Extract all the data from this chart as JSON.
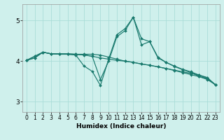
{
  "xlabel": "Humidex (Indice chaleur)",
  "bg_color": "#cff0ec",
  "grid_color": "#aaddd8",
  "line_color": "#1a7a6e",
  "xlim": [
    -0.5,
    23.5
  ],
  "ylim": [
    2.75,
    5.4
  ],
  "yticks": [
    3,
    4,
    5
  ],
  "xticks": [
    0,
    1,
    2,
    3,
    4,
    5,
    6,
    7,
    8,
    9,
    10,
    11,
    12,
    13,
    14,
    15,
    16,
    17,
    18,
    19,
    20,
    21,
    22,
    23
  ],
  "lines": [
    {
      "x": [
        0,
        1,
        2,
        3,
        4,
        5,
        6,
        7,
        8,
        9,
        10,
        11,
        12,
        13,
        14,
        15,
        16,
        17,
        18,
        19,
        20,
        21,
        22,
        23
      ],
      "y": [
        4.02,
        4.12,
        4.22,
        4.18,
        4.18,
        4.18,
        4.17,
        4.17,
        4.17,
        4.15,
        4.1,
        4.05,
        4.0,
        3.97,
        3.93,
        3.9,
        3.86,
        3.82,
        3.78,
        3.74,
        3.7,
        3.66,
        3.6,
        3.42
      ]
    },
    {
      "x": [
        0,
        1,
        2,
        3,
        4,
        5,
        6,
        7,
        8,
        9,
        10,
        11,
        12,
        13,
        14,
        15,
        16,
        17,
        18,
        19,
        20,
        21,
        22,
        23
      ],
      "y": [
        4.02,
        4.08,
        4.22,
        4.18,
        4.17,
        4.17,
        4.16,
        4.16,
        4.12,
        3.55,
        4.0,
        4.6,
        4.75,
        5.08,
        4.55,
        4.48,
        4.1,
        3.97,
        3.88,
        3.8,
        3.74,
        3.66,
        3.58,
        3.42
      ]
    },
    {
      "x": [
        0,
        1,
        2,
        3,
        4,
        5,
        6,
        7,
        8,
        9,
        10,
        11,
        12,
        13,
        14,
        15,
        16,
        17,
        18,
        19,
        20,
        21,
        22,
        23
      ],
      "y": [
        4.02,
        4.08,
        4.22,
        4.18,
        4.17,
        4.17,
        4.15,
        3.88,
        3.75,
        3.4,
        4.05,
        4.65,
        4.8,
        5.08,
        4.4,
        4.48,
        4.08,
        3.97,
        3.87,
        3.79,
        3.72,
        3.63,
        3.57,
        3.42
      ]
    },
    {
      "x": [
        0,
        1,
        2,
        3,
        4,
        5,
        6,
        7,
        8,
        9,
        10,
        11,
        12,
        13,
        14,
        15,
        16,
        17,
        18,
        19,
        20,
        21,
        22,
        23
      ],
      "y": [
        4.02,
        4.12,
        4.22,
        4.18,
        4.18,
        4.18,
        4.17,
        4.15,
        4.12,
        4.08,
        4.05,
        4.02,
        4.0,
        3.97,
        3.93,
        3.9,
        3.86,
        3.82,
        3.77,
        3.72,
        3.67,
        3.62,
        3.55,
        3.42
      ]
    }
  ]
}
